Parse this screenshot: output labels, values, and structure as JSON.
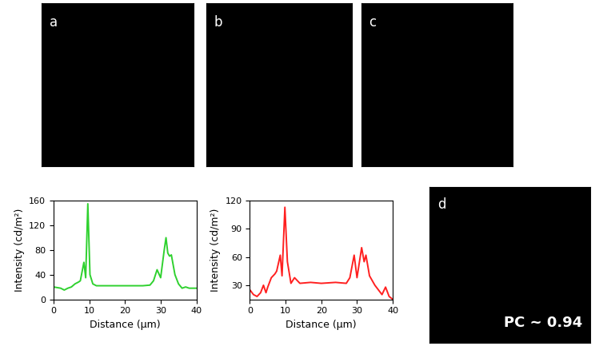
{
  "images": [
    {
      "label": "a"
    },
    {
      "label": "b"
    },
    {
      "label": "c"
    },
    {
      "label": "d",
      "annotation": "PC ~ 0.94"
    }
  ],
  "chart_data": [
    {
      "type": "line",
      "xlabel": "Distance (μm)",
      "ylabel": "Intensity (cd/m²)",
      "x": [
        0,
        1,
        2,
        3,
        4,
        5,
        6,
        7,
        7.5,
        8.5,
        9,
        9.6,
        10.2,
        11,
        12,
        15,
        20,
        25,
        27,
        28,
        29,
        30,
        31,
        31.5,
        32,
        32.5,
        33,
        34,
        35,
        36,
        37,
        38,
        39,
        40
      ],
      "values": [
        20,
        19,
        18,
        15,
        18,
        20,
        25,
        28,
        30,
        60,
        35,
        155,
        40,
        25,
        22,
        22,
        22,
        22,
        23,
        30,
        48,
        35,
        80,
        100,
        75,
        70,
        72,
        40,
        25,
        18,
        20,
        18,
        18,
        18
      ],
      "color": "#2fd12f",
      "xlim": [
        0,
        40
      ],
      "xticks": [
        0,
        10,
        20,
        30,
        40
      ],
      "ylim": [
        0,
        160
      ],
      "yticks": [
        0,
        40,
        80,
        120,
        160
      ]
    },
    {
      "type": "line",
      "xlabel": "Distance (μm)",
      "ylabel": "Intensity (cd/m²)",
      "x": [
        0,
        1,
        2,
        3,
        3.8,
        4.5,
        5,
        6,
        7,
        7.5,
        8.5,
        9,
        9.8,
        10.5,
        11.5,
        12.5,
        14,
        17,
        20,
        24,
        27,
        28,
        29.2,
        30,
        31.3,
        32,
        32.5,
        33.5,
        35,
        36,
        37,
        38,
        39,
        40
      ],
      "values": [
        25,
        20,
        18,
        22,
        30,
        22,
        28,
        38,
        42,
        45,
        62,
        40,
        113,
        55,
        32,
        38,
        32,
        33,
        32,
        33,
        32,
        38,
        62,
        38,
        70,
        55,
        62,
        40,
        30,
        25,
        20,
        28,
        18,
        15
      ],
      "color": "#ff2020",
      "xlim": [
        0,
        40
      ],
      "xticks": [
        0,
        10,
        20,
        30,
        40
      ],
      "ylim": [
        15,
        120
      ],
      "yticks": [
        30,
        60,
        90,
        120
      ]
    }
  ]
}
